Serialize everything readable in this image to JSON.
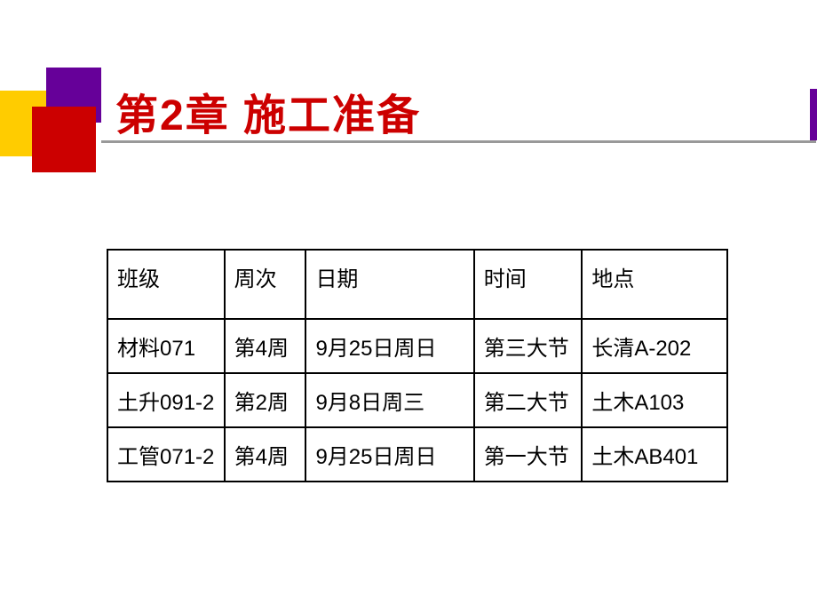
{
  "title": "第2章  施工准备",
  "decoration": {
    "yellow_color": "#ffcc00",
    "purple_color": "#660099",
    "red_color": "#cc0000"
  },
  "table": {
    "headers": {
      "class": "班级",
      "week": "周次",
      "date": "日期",
      "time": "时间",
      "location": "地点"
    },
    "rows": [
      {
        "class": "材料071",
        "week": "第4周",
        "date": "9月25日周日",
        "time": "第三大节",
        "location": "长清A-202"
      },
      {
        "class": "土升091-2",
        "week": "第2周",
        "date": "9月8日周三",
        "time": "第二大节",
        "location": "土木A103"
      },
      {
        "class": "工管071-2",
        "week": "第4周",
        "date": "9月25日周日",
        "time": "第一大节",
        "location": "土木AB401"
      }
    ]
  },
  "styling": {
    "title_color": "#cc0000",
    "title_fontsize": 48,
    "cell_fontsize": 24,
    "border_color": "#000000",
    "underline_color": "#999999",
    "background_color": "#ffffff"
  }
}
